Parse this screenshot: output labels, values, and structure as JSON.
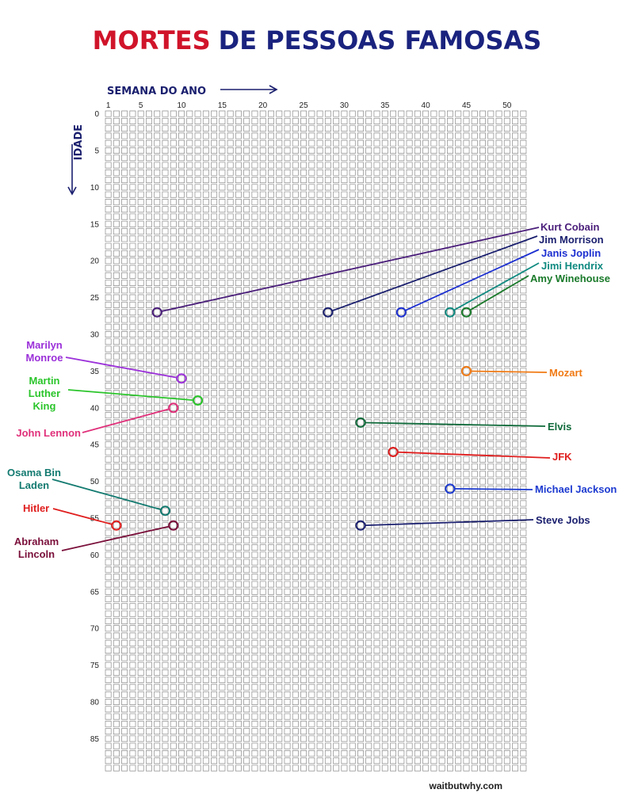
{
  "title": {
    "part1": "MORTES",
    "part2": "DE PESSOAS FAMOSAS",
    "color1": "#d0142a",
    "color2": "#1a237e"
  },
  "x_axis_label": "SEMANA DO ANO",
  "y_axis_label": "IDADE",
  "credit": "waitbutwhy.com",
  "chart_data": {
    "type": "scatter",
    "grid": true,
    "x": {
      "label": "SEMANA DO ANO",
      "range": [
        1,
        52
      ],
      "ticks": [
        1,
        5,
        10,
        15,
        20,
        25,
        30,
        35,
        40,
        45,
        50
      ]
    },
    "y": {
      "label": "IDADE",
      "range": [
        0,
        89
      ],
      "inverted": true,
      "ticks": [
        0,
        5,
        10,
        15,
        20,
        25,
        30,
        35,
        40,
        45,
        50,
        55,
        60,
        65,
        70,
        75,
        80,
        85
      ]
    },
    "points": [
      {
        "name": "Kurt Cobain",
        "week": 7,
        "age": 27,
        "color": "#4a1e7a",
        "label_side": "right"
      },
      {
        "name": "Jim Morrison",
        "week": 28,
        "age": 27,
        "color": "#1a1f6e",
        "label_side": "right"
      },
      {
        "name": "Janis Joplin",
        "week": 37,
        "age": 27,
        "color": "#1c2fd0",
        "label_side": "right"
      },
      {
        "name": "Jimi Hendrix",
        "week": 43,
        "age": 27,
        "color": "#0f8a80",
        "label_side": "right"
      },
      {
        "name": "Amy Winehouse",
        "week": 45,
        "age": 27,
        "color": "#1a7a2a",
        "label_side": "right"
      },
      {
        "name": "Marilyn Monroe",
        "week": 10,
        "age": 36,
        "color": "#9b30d9",
        "label_side": "left"
      },
      {
        "name": "Mozart",
        "week": 45,
        "age": 35,
        "color": "#f07a14",
        "label_side": "right"
      },
      {
        "name": "Martin Luther King",
        "week": 12,
        "age": 39,
        "color": "#2bc52b",
        "label_side": "left"
      },
      {
        "name": "John Lennon",
        "week": 9,
        "age": 40,
        "color": "#e0307a",
        "label_side": "left"
      },
      {
        "name": "Elvis",
        "week": 32,
        "age": 42,
        "color": "#0f6a3a",
        "label_side": "right"
      },
      {
        "name": "JFK",
        "week": 36,
        "age": 46,
        "color": "#e01e1e",
        "label_side": "right"
      },
      {
        "name": "Osama Bin Laden",
        "week": 8,
        "age": 54,
        "color": "#137a70",
        "label_side": "left"
      },
      {
        "name": "Michael Jackson",
        "week": 43,
        "age": 51,
        "color": "#1c3ad0",
        "label_side": "right"
      },
      {
        "name": "Hitler",
        "week": 2,
        "age": 56,
        "color": "#e01e1e",
        "label_side": "left"
      },
      {
        "name": "Abraham Lincoln",
        "week": 9,
        "age": 56,
        "color": "#7a0f3a",
        "label_side": "left"
      },
      {
        "name": "Steve Jobs",
        "week": 32,
        "age": 56,
        "color": "#1a1f6e",
        "label_side": "right"
      }
    ]
  }
}
